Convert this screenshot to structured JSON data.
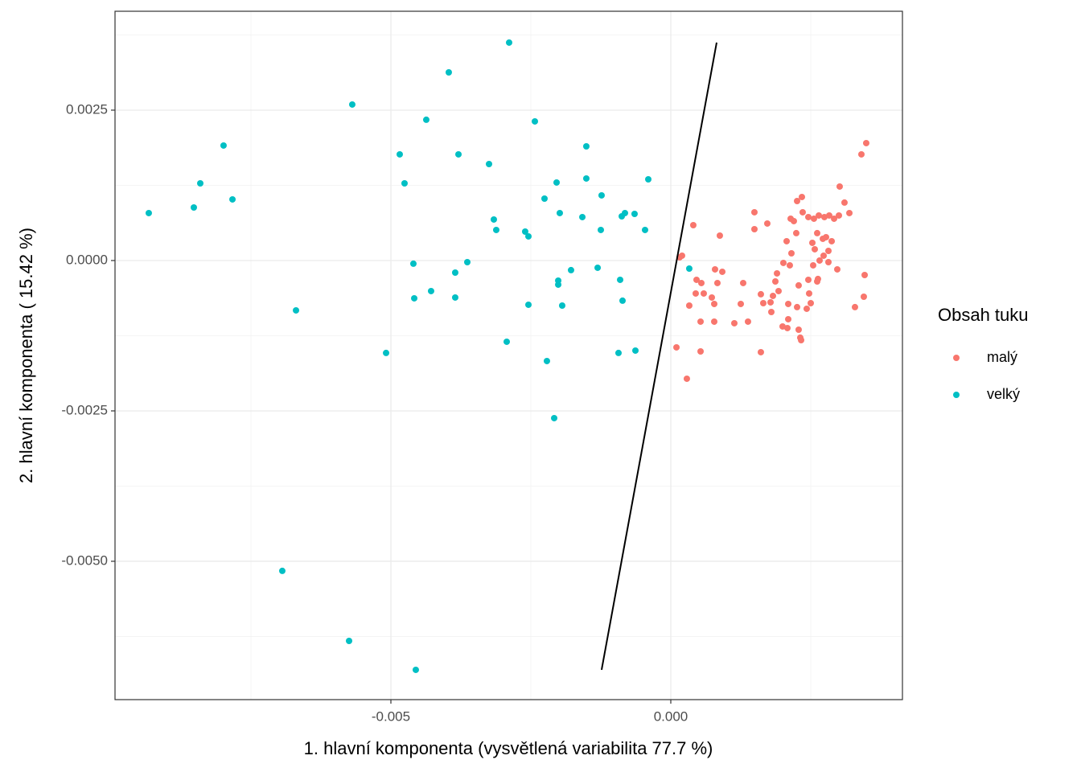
{
  "chart_data": {
    "type": "scatter",
    "xlabel": "1. hlavní komponenta (vysvětlená variabilita 77.7 %)",
    "ylabel": "2. hlavní komponenta ( 15.42 %)",
    "xlim": [
      -0.009928,
      0.004138
    ],
    "ylim": [
      -0.0073,
      0.004144
    ],
    "xticks": [
      -0.005,
      {
        "value": 0,
        "label": "0.000"
      }
    ],
    "yticks": [
      {
        "value": -0.005,
        "label": "-0.0050"
      },
      -0.0025,
      {
        "value": 0,
        "label": "0.0000"
      },
      0.0025
    ],
    "grid": true,
    "legend_title": "Obsah tuku",
    "legend": "right",
    "series": [
      {
        "name": "malý",
        "color": "#F8766D",
        "x": [
          0.003491,
          0.003405,
          0.003017,
          0.003103,
          0.00319,
          0.003003,
          0.002917,
          0.00283,
          0.002744,
          0.002644,
          0.002557,
          0.002457,
          0.002356,
          0.002342,
          0.002256,
          0.002198,
          0.002141,
          0.002069,
          0.002241,
          0.002615,
          0.002529,
          0.002716,
          0.002773,
          0.002874,
          0.002816,
          0.00273,
          0.002572,
          0.002658,
          0.002543,
          0.002816,
          0.002974,
          0.003463,
          0.003448,
          0.00329,
          0.002629,
          0.002457,
          0.002615,
          0.002126,
          0.002155,
          0.002011,
          0.001897,
          0.001868,
          0.001825,
          0.001782,
          0.001652,
          0.001609,
          0.001925,
          0.002284,
          0.002471,
          0.0025,
          0.002428,
          0.002256,
          0.002098,
          0.002098,
          0.001997,
          0.002083,
          0.002284,
          0.002313,
          0.002328,
          0.001796,
          0.001609,
          0.001494,
          0.001494,
          0.001724,
          0.001293,
          0.00125,
          0.001379,
          0.001135,
          0.00092,
          0.00079,
          0.000833,
          0.000776,
          0.000733,
          0.000589,
          0.000546,
          0.000532,
          0.00046,
          0.000445,
          0.000402,
          0.00033,
          0.000201,
          0.000158,
          0.000532,
          0.000101,
          0.000287,
          0.000876,
          0.000776
        ],
        "values": [
          0.001952,
          0.001765,
          0.00123,
          0.000963,
          0.000789,
          0.000749,
          0.000695,
          0.000749,
          0.000722,
          0.000749,
          0.000695,
          0.000722,
          0.000802,
          0.001056,
          0.000989,
          0.000655,
          0.000695,
          0.000321,
          0.000455,
          0.000455,
          0.000294,
          0.000361,
          0.000388,
          0.000321,
          0.00016,
          8e-05,
          0.000187,
          0,
          -8e-05,
          -2.7e-05,
          -0.000147,
          -0.000241,
          -0.000602,
          -0.000775,
          -0.000307,
          -0.000321,
          -0.000348,
          -8e-05,
          0.00012,
          -4e-05,
          -0.000214,
          -0.000348,
          -0.000588,
          -0.000695,
          -0.000709,
          -0.000561,
          -0.000508,
          -0.000414,
          -0.000548,
          -0.000709,
          -0.000802,
          -0.000775,
          -0.000722,
          -0.000976,
          -0.001096,
          -0.001123,
          -0.00115,
          -0.001283,
          -0.001324,
          -0.000856,
          -0.001524,
          0.000802,
          0.000521,
          0.000615,
          -0.000374,
          -0.000722,
          -0.001016,
          -0.001043,
          -0.000187,
          -0.000147,
          -0.000374,
          -0.000722,
          -0.000615,
          -0.000548,
          -0.000374,
          -0.001016,
          -0.000321,
          -0.000548,
          0.000588,
          -0.000749,
          8e-05,
          5.3e-05,
          -0.001511,
          -0.001444,
          -0.001965,
          0.000414,
          -0.001016
        ]
      },
      {
        "name": "velký",
        "color": "#00BFC4",
        "x": [
          -0.009325,
          -0.00852,
          -0.008405,
          -0.007989,
          -0.00783,
          -0.00694,
          -0.006695,
          -0.005747,
          -0.00569,
          -0.005086,
          -0.004842,
          -0.004756,
          -0.004598,
          -0.004583,
          -0.004555,
          -0.004368,
          -0.004282,
          -0.003966,
          -0.003851,
          -0.003851,
          -0.003793,
          -0.003635,
          -0.003247,
          -0.003161,
          -0.003118,
          -0.002931,
          -0.002888,
          -0.002601,
          -0.002543,
          -0.002543,
          -0.002428,
          -0.002256,
          -0.002213,
          -0.002083,
          -0.00204,
          -0.002011,
          -0.002011,
          -0.001983,
          -0.00194,
          -0.001782,
          -0.00158,
          -0.001509,
          -0.001509,
          -0.001307,
          -0.001236,
          -0.00125,
          -0.000934,
          -0.000905,
          -0.000876,
          -0.000862,
          -0.000819,
          -0.000647,
          -0.000632,
          -0.00046,
          -0.000402,
          0.00033
        ],
        "values": [
          0.000789,
          0.000882,
          0.001283,
          0.001912,
          0.001016,
          -0.00516,
          -0.000829,
          -0.006324,
          0.002594,
          -0.001537,
          0.001765,
          0.001283,
          -5.3e-05,
          -0.000628,
          -0.006805,
          0.00234,
          -0.000508,
          0.003128,
          -0.000201,
          -0.000615,
          0.001765,
          -2.7e-05,
          0.001604,
          0.000682,
          0.000508,
          -0.00135,
          0.003623,
          0.000481,
          0.000401,
          -0.000735,
          0.002313,
          0.001029,
          -0.001671,
          -0.00262,
          0.001297,
          -0.000334,
          -0.000401,
          0.000789,
          -0.000749,
          -0.00016,
          0.000722,
          0.001898,
          0.001364,
          -0.00012,
          0.001083,
          0.000508,
          -0.001537,
          -0.000321,
          0.000735,
          -0.000668,
          0.000789,
          0.000775,
          -0.001497,
          0.000508,
          0.00135,
          -0.000134
        ]
      }
    ],
    "line": {
      "color": "#000000",
      "x": [
        -0.001236,
        0.000819
      ],
      "y": [
        -0.006805,
        0.003623
      ]
    }
  }
}
